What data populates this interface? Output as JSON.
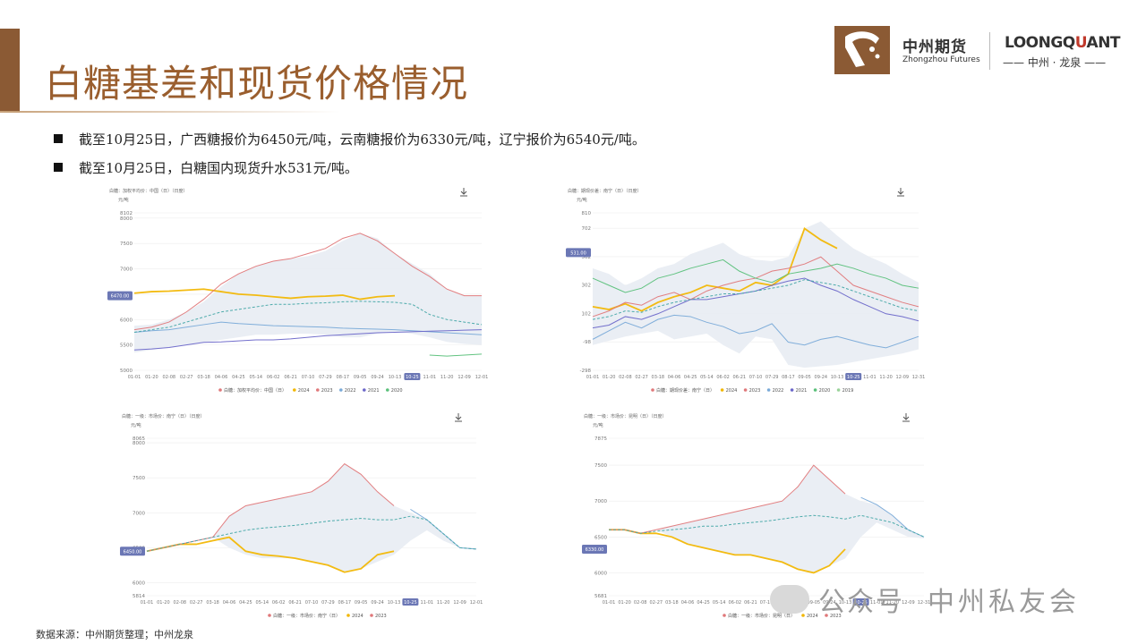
{
  "page": {
    "title": "白糖基差和现货价格情况",
    "bullets": [
      "截至10月25日，广西糖报价为6450元/吨，云南糖报价为6330元/吨，辽宁报价为6540元/吨。",
      "截至10月25日，白糖国内现货升水531元/吨。"
    ],
    "footer": "数据来源：中州期货整理；中州龙泉",
    "watermark": {
      "left": "公众号",
      "right": "中州私友会"
    }
  },
  "brand": {
    "zz_cn": "中州期货",
    "zz_en": "Zhongzhou Futures",
    "lq_en_a": "LOONGQ",
    "lq_en_o": "U",
    "lq_en_b": "ANT",
    "lq_cn": "—— 中州 · 龙泉 ——",
    "color": "#8b5a34"
  },
  "colors": {
    "2024": "#f2b705",
    "2023": "#e0787a",
    "2022": "#7aaad8",
    "2021": "#6c67c9",
    "2020": "#5ac07a",
    "2019": "#9ad39a",
    "avg": "#45a6a6",
    "band": "#e8ecf3",
    "highlight": "#6b77b5"
  },
  "chart_data": [
    {
      "type": "line",
      "caption": "白糖：加权平均价：中国（日）（日度）",
      "unit": "元/吨",
      "ylim": [
        5000,
        8102
      ],
      "ytick_labels": [
        "5000",
        "5500",
        "6000",
        "6500",
        "7000",
        "7500",
        "8000",
        "8102"
      ],
      "xticks": [
        "01-01",
        "01-20",
        "02-08",
        "02-27",
        "03-18",
        "04-06",
        "04-25",
        "05-14",
        "06-02",
        "06-21",
        "07-10",
        "07-29",
        "08-17",
        "09-05",
        "09-24",
        "10-13",
        "10-25",
        "11-01",
        "11-20",
        "12-09",
        "12-01"
      ],
      "highlight_x": "10-25",
      "current_label": "6470.00",
      "current": 6470,
      "legend": [
        {
          "name": "白糖：加权平均价：中国（日）",
          "color": "#e0787a"
        },
        {
          "name": "2024",
          "color": "#f2b705"
        },
        {
          "name": "2023",
          "color": "#e0787a"
        },
        {
          "name": "2022",
          "color": "#7aaad8"
        },
        {
          "name": "2021",
          "color": "#6c67c9"
        },
        {
          "name": "2020",
          "color": "#5ac07a"
        }
      ],
      "band_upper": [
        5880,
        5900,
        6000,
        6150,
        6350,
        6650,
        6900,
        7050,
        7150,
        7200,
        7250,
        7350,
        7550,
        7700,
        7600,
        7300,
        7100,
        6900,
        6600,
        6470,
        6470
      ],
      "band_lower": [
        5350,
        5400,
        5450,
        5500,
        5550,
        5600,
        5650,
        5700,
        5700,
        5720,
        5720,
        5700,
        5650,
        5650,
        5720,
        5760,
        5720,
        5650,
        5560,
        5520,
        5500
      ],
      "series": [
        {
          "name": "2024",
          "values": [
            6520,
            6550,
            6560,
            6580,
            6600,
            6550,
            6500,
            6480,
            6450,
            6420,
            6450,
            6460,
            6480,
            6400,
            6450,
            6470,
            null,
            null,
            null,
            null,
            null
          ]
        },
        {
          "name": "2023",
          "values": [
            5800,
            5850,
            5950,
            6150,
            6400,
            6700,
            6900,
            7050,
            7150,
            7200,
            7300,
            7400,
            7600,
            7700,
            7550,
            7300,
            7050,
            6850,
            6600,
            6470,
            6470
          ]
        },
        {
          "name": "2022",
          "values": [
            5750,
            5780,
            5800,
            5850,
            5900,
            5950,
            5920,
            5900,
            5880,
            5870,
            5860,
            5850,
            5830,
            5820,
            5810,
            5800,
            5780,
            5760,
            5740,
            5720,
            5700
          ]
        },
        {
          "name": "2021",
          "values": [
            5400,
            5420,
            5450,
            5500,
            5550,
            5560,
            5580,
            5600,
            5600,
            5620,
            5650,
            5680,
            5700,
            5720,
            5740,
            5750,
            5760,
            5770,
            5780,
            5790,
            5800
          ]
        },
        {
          "name": "2020",
          "values": [
            null,
            null,
            null,
            null,
            null,
            null,
            null,
            null,
            null,
            null,
            null,
            null,
            null,
            null,
            null,
            null,
            null,
            5300,
            5280,
            5300,
            5320
          ]
        },
        {
          "name": "avg",
          "values": [
            5750,
            5800,
            5850,
            5950,
            6050,
            6150,
            6200,
            6250,
            6300,
            6300,
            6320,
            6330,
            6350,
            6360,
            6350,
            6340,
            6300,
            6100,
            6000,
            5950,
            5900
          ]
        }
      ]
    },
    {
      "type": "line",
      "caption": "白糖：期现价差：南宁（日）（日度）",
      "unit": "元/吨",
      "ylim": [
        -298,
        810
      ],
      "ytick_labels": [
        "-298",
        "-98",
        "102",
        "302",
        "502",
        "702",
        "810"
      ],
      "xticks": [
        "01-01",
        "01-20",
        "02-08",
        "02-27",
        "03-18",
        "04-06",
        "04-25",
        "05-14",
        "06-02",
        "06-21",
        "07-10",
        "07-29",
        "08-17",
        "09-05",
        "09-24",
        "10-13",
        "10-25",
        "11-01",
        "11-20",
        "12-09",
        "12-31"
      ],
      "highlight_x": "10-25",
      "current_label": "531.00",
      "current": 531,
      "legend": [
        {
          "name": "白糖：期现价差：南宁（日）",
          "color": "#e0787a"
        },
        {
          "name": "2024",
          "color": "#f2b705"
        },
        {
          "name": "2023",
          "color": "#e0787a"
        },
        {
          "name": "2022",
          "color": "#7aaad8"
        },
        {
          "name": "2021",
          "color": "#6c67c9"
        },
        {
          "name": "2020",
          "color": "#5ac07a"
        },
        {
          "name": "2019",
          "color": "#9ad39a"
        }
      ],
      "band_upper": [
        420,
        380,
        300,
        350,
        420,
        450,
        520,
        560,
        600,
        520,
        480,
        470,
        500,
        700,
        750,
        650,
        560,
        500,
        450,
        380,
        320
      ],
      "band_lower": [
        -120,
        -90,
        -60,
        -40,
        -20,
        -80,
        -60,
        -40,
        -120,
        -180,
        -60,
        -80,
        -260,
        -280,
        -270,
        -260,
        -240,
        -220,
        -200,
        -180,
        -150
      ],
      "series": [
        {
          "name": "2024",
          "values": [
            150,
            130,
            170,
            120,
            180,
            220,
            250,
            300,
            280,
            260,
            320,
            300,
            380,
            700,
            620,
            560,
            null,
            null,
            null,
            null,
            null
          ]
        },
        {
          "name": "2023",
          "values": [
            80,
            120,
            180,
            160,
            220,
            250,
            200,
            260,
            300,
            330,
            350,
            400,
            420,
            450,
            500,
            400,
            300,
            260,
            220,
            180,
            150
          ]
        },
        {
          "name": "2022",
          "values": [
            -80,
            -20,
            40,
            0,
            60,
            90,
            80,
            40,
            10,
            -40,
            -20,
            30,
            -100,
            -120,
            -80,
            -60,
            -90,
            -120,
            -140,
            -100,
            -60
          ]
        },
        {
          "name": "2021",
          "values": [
            0,
            20,
            80,
            60,
            100,
            150,
            200,
            200,
            220,
            240,
            260,
            300,
            330,
            350,
            300,
            260,
            200,
            150,
            100,
            80,
            50
          ]
        },
        {
          "name": "2020",
          "values": [
            350,
            300,
            250,
            280,
            350,
            380,
            420,
            450,
            480,
            400,
            350,
            320,
            380,
            400,
            420,
            450,
            420,
            380,
            350,
            300,
            280
          ]
        },
        {
          "name": "avg",
          "values": [
            60,
            80,
            120,
            110,
            150,
            180,
            200,
            220,
            240,
            240,
            260,
            280,
            300,
            340,
            320,
            300,
            260,
            220,
            180,
            140,
            120
          ]
        }
      ]
    },
    {
      "type": "line",
      "caption": "白糖：一级：市场价：南宁（日）（日度）",
      "unit": "元/吨",
      "ylim": [
        5814,
        8065
      ],
      "ytick_labels": [
        "5814",
        "6000",
        "6500",
        "7000",
        "7500",
        "8000",
        "8065"
      ],
      "xticks": [
        "01-01",
        "01-20",
        "02-08",
        "02-27",
        "03-18",
        "04-06",
        "04-25",
        "05-14",
        "06-02",
        "06-21",
        "07-10",
        "07-29",
        "08-17",
        "09-05",
        "09-24",
        "10-13",
        "10-25",
        "11-01",
        "11-20",
        "12-09",
        "12-01"
      ],
      "highlight_x": "10-25",
      "current_label": "6450.00",
      "current": 6450,
      "legend": [
        {
          "name": "白糖：一级：市场价：南宁（日）",
          "color": "#e0787a"
        },
        {
          "name": "2024",
          "color": "#f2b705"
        },
        {
          "name": "2023",
          "color": "#e0787a"
        }
      ],
      "band_upper": [
        6450,
        6500,
        6550,
        6600,
        6650,
        6950,
        7100,
        7150,
        7200,
        7250,
        7300,
        7450,
        7700,
        7550,
        7300,
        7100,
        7000,
        6900,
        6700,
        6500,
        6480
      ],
      "band_lower": [
        6450,
        6500,
        6550,
        6600,
        6650,
        6500,
        6400,
        6350,
        6350,
        6350,
        6300,
        6250,
        6150,
        6200,
        6300,
        6400,
        6600,
        6750,
        6600,
        6500,
        6480
      ],
      "series": [
        {
          "name": "2024",
          "values": [
            6450,
            6500,
            6550,
            6550,
            6600,
            6650,
            6450,
            6400,
            6380,
            6350,
            6300,
            6250,
            6150,
            6200,
            6400,
            6450,
            null,
            null,
            null,
            null,
            null
          ]
        },
        {
          "name": "2023",
          "values": [
            6450,
            6500,
            6550,
            6600,
            6650,
            6950,
            7100,
            7150,
            7200,
            7250,
            7300,
            7450,
            7700,
            7550,
            7300,
            7100,
            null,
            null,
            null,
            null,
            null
          ]
        },
        {
          "name": "hist",
          "values": [
            null,
            null,
            null,
            null,
            null,
            null,
            null,
            null,
            null,
            null,
            null,
            null,
            null,
            null,
            null,
            null,
            7050,
            6900,
            6700,
            6500,
            6480
          ]
        },
        {
          "name": "avg",
          "values": [
            6450,
            6500,
            6550,
            6600,
            6650,
            6700,
            6750,
            6780,
            6800,
            6820,
            6850,
            6880,
            6900,
            6920,
            6900,
            6900,
            6950,
            6900,
            6700,
            6500,
            6480
          ]
        }
      ]
    },
    {
      "type": "line",
      "caption": "白糖：一级：市场价：昆明（日）（日度）",
      "unit": "元/吨",
      "ylim": [
        5681,
        7875
      ],
      "ytick_labels": [
        "5681",
        "6000",
        "6500",
        "7000",
        "7500",
        "7875"
      ],
      "xticks": [
        "01-01",
        "01-20",
        "02-08",
        "02-27",
        "03-18",
        "04-06",
        "04-25",
        "05-14",
        "06-02",
        "06-21",
        "07-10",
        "07-29",
        "08-17",
        "09-05",
        "09-24",
        "10-13",
        "10-25",
        "11-01",
        "11-20",
        "12-09",
        "12-31"
      ],
      "highlight_x": "10-25",
      "current_label": "6330.00",
      "current": 6330,
      "legend": [
        {
          "name": "白糖：一级：市场价：昆明（日）",
          "color": "#e0787a"
        },
        {
          "name": "2024",
          "color": "#f2b705"
        },
        {
          "name": "2023",
          "color": "#e0787a"
        }
      ],
      "band_upper": [
        6600,
        6600,
        6550,
        6600,
        6650,
        6700,
        6750,
        6800,
        6850,
        6900,
        6950,
        7000,
        7200,
        7500,
        7300,
        7100,
        7000,
        6950,
        6800,
        6600,
        6500
      ],
      "band_lower": [
        6600,
        6600,
        6550,
        6600,
        6500,
        6400,
        6350,
        6300,
        6250,
        6250,
        6200,
        6150,
        6050,
        6000,
        6100,
        6200,
        6500,
        6700,
        6600,
        6500,
        6480
      ],
      "series": [
        {
          "name": "2024",
          "values": [
            6600,
            6600,
            6550,
            6550,
            6500,
            6400,
            6350,
            6300,
            6250,
            6250,
            6200,
            6150,
            6050,
            6000,
            6100,
            6330,
            null,
            null,
            null,
            null,
            null
          ]
        },
        {
          "name": "2023",
          "values": [
            6600,
            6600,
            6550,
            6600,
            6650,
            6700,
            6750,
            6800,
            6850,
            6900,
            6950,
            7000,
            7200,
            7500,
            7300,
            7100,
            null,
            null,
            null,
            null,
            null
          ]
        },
        {
          "name": "hist",
          "values": [
            null,
            null,
            null,
            null,
            null,
            null,
            null,
            null,
            null,
            null,
            null,
            null,
            null,
            null,
            null,
            null,
            7050,
            6950,
            6800,
            6600,
            6500
          ]
        },
        {
          "name": "avg",
          "values": [
            6600,
            6600,
            6550,
            6580,
            6600,
            6620,
            6650,
            6650,
            6680,
            6700,
            6720,
            6750,
            6780,
            6800,
            6780,
            6750,
            6800,
            6750,
            6700,
            6600,
            6500
          ]
        }
      ]
    }
  ]
}
